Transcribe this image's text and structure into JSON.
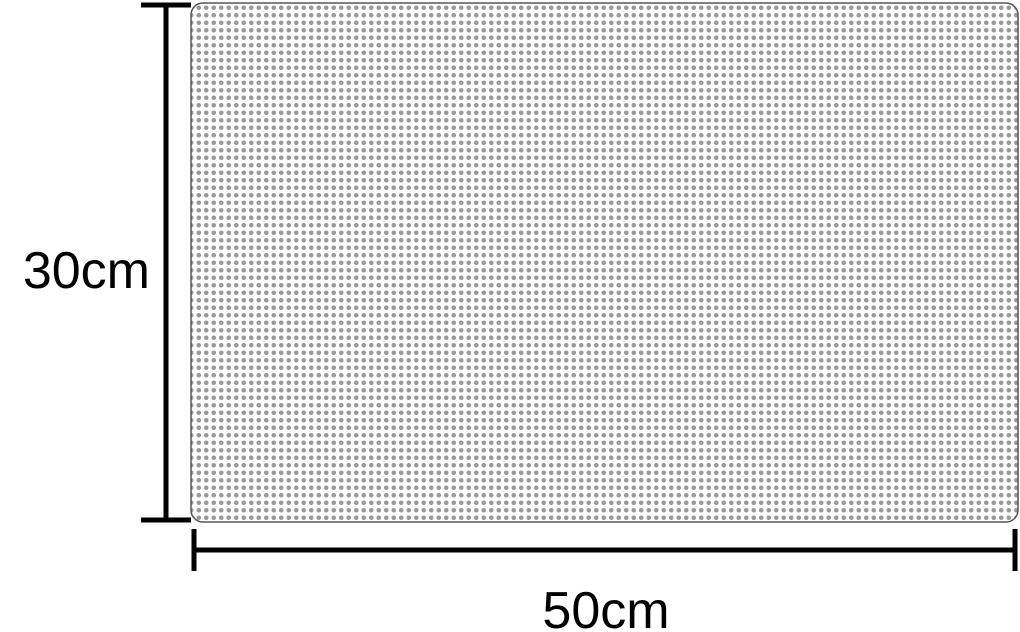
{
  "diagram": {
    "height_label": "30cm",
    "width_label": "50cm"
  },
  "colors": {
    "dot": "#999999",
    "sheet_border": "#555555",
    "dimension_line": "#000000",
    "background": "#ffffff"
  }
}
